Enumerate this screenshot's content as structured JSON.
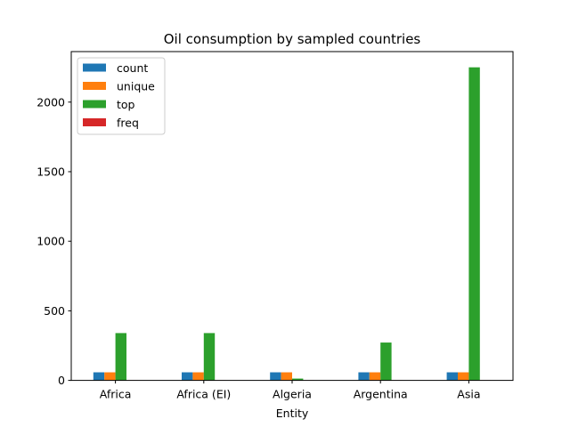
{
  "chart_data": {
    "type": "bar",
    "title": "Oil consumption by sampled countries",
    "xlabel": "Entity",
    "ylabel": "",
    "categories": [
      "Africa",
      "Africa (EI)",
      "Algeria",
      "Argentina",
      "Asia"
    ],
    "series": [
      {
        "name": "count",
        "color": "#1f77b4",
        "values": [
          58,
          58,
          58,
          58,
          58
        ]
      },
      {
        "name": "unique",
        "color": "#ff7f0e",
        "values": [
          58,
          58,
          58,
          58,
          58
        ]
      },
      {
        "name": "top",
        "color": "#2ca02c",
        "values": [
          340,
          340,
          13,
          272,
          2250
        ]
      },
      {
        "name": "freq",
        "color": "#d62728",
        "values": [
          1,
          1,
          1,
          1,
          1
        ]
      }
    ],
    "ylim": [
      0,
      2363
    ],
    "yticks": [
      0,
      500,
      1000,
      1500,
      2000
    ],
    "legend_position": "upper-left",
    "grid": false
  }
}
